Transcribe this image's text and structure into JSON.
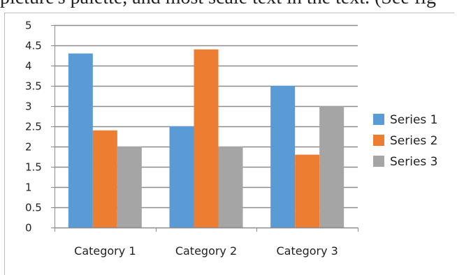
{
  "page": {
    "top_text": "picture's palette, and most scale text in the text. (See fig"
  },
  "chart_data": {
    "type": "bar",
    "categories": [
      "Category 1",
      "Category 2",
      "Category 3"
    ],
    "series": [
      {
        "name": "Series 1",
        "values": [
          4.3,
          2.5,
          3.5
        ],
        "color": "#5b9bd5"
      },
      {
        "name": "Series 2",
        "values": [
          2.4,
          4.4,
          1.8
        ],
        "color": "#ed7d31"
      },
      {
        "name": "Series 3",
        "values": [
          2.0,
          2.0,
          3.0
        ],
        "color": "#a5a5a5"
      }
    ],
    "ylim": [
      0,
      5
    ],
    "yticks": [
      "0",
      "0.5",
      "1",
      "1.5",
      "2",
      "2.5",
      "3",
      "3.5",
      "4",
      "4.5",
      "5"
    ],
    "ytick_values": [
      0,
      0.5,
      1,
      1.5,
      2,
      2.5,
      3,
      3.5,
      4,
      4.5,
      5
    ],
    "grid": true,
    "legend": "right",
    "title": "",
    "xlabel": "",
    "ylabel": ""
  }
}
